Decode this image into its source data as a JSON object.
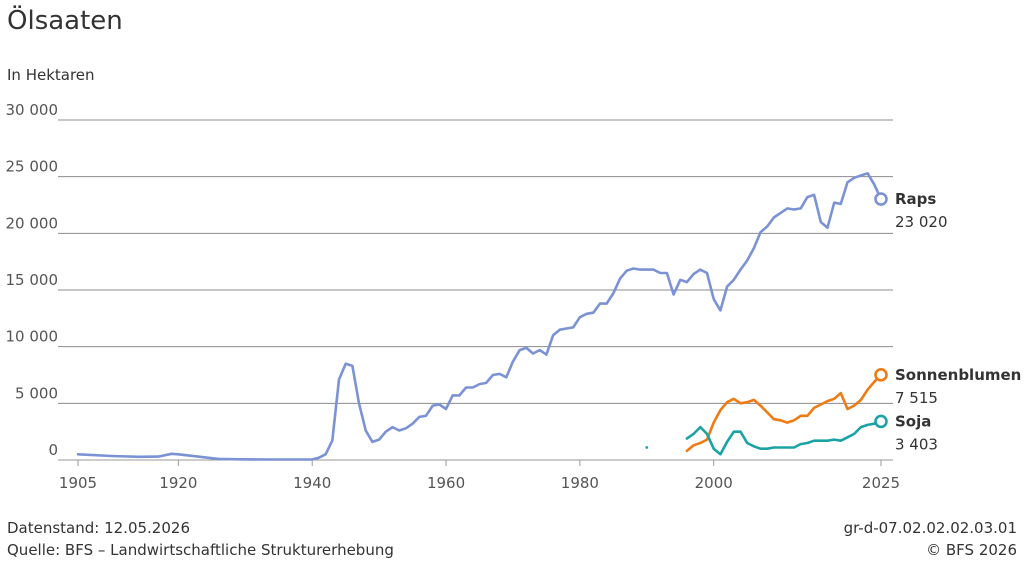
{
  "header": {
    "title": "Ölsaaten",
    "subtitle": "In Hektaren"
  },
  "footer": {
    "data_status": "Datenstand: 12.05.2026",
    "source": "Quelle: BFS – Landwirtschaftliche Strukturerhebung",
    "code": "gr-d-07.02.02.02.03.01",
    "copyright": "© BFS 2026"
  },
  "chart_data": {
    "type": "line",
    "title": "Ölsaaten",
    "subtitle": "In Hektaren",
    "xlim": [
      1905,
      2025
    ],
    "ylim": [
      0,
      30000
    ],
    "x_ticks": [
      1905,
      1920,
      1940,
      1960,
      1980,
      2000,
      2025
    ],
    "x_tick_labels": [
      "1905",
      "1920",
      "1940",
      "1960",
      "1980",
      "2000",
      "2025"
    ],
    "y_ticks": [
      0,
      5000,
      10000,
      15000,
      20000,
      25000,
      30000
    ],
    "y_tick_labels": [
      "0",
      "5 000",
      "10 000",
      "15 000",
      "20 000",
      "25 000",
      "30 000"
    ],
    "grid": true,
    "legend": "end-labels",
    "series": [
      {
        "name": "Raps",
        "color": "#7b92d4",
        "end_label": "23 020",
        "x": [
          1905,
          1910,
          1914,
          1917,
          1919,
          1920,
          1926,
          1929,
          1934,
          1939,
          1940,
          1941,
          1942,
          1943,
          1944,
          1945,
          1946,
          1947,
          1948,
          1949,
          1950,
          1951,
          1952,
          1953,
          1954,
          1955,
          1956,
          1957,
          1958,
          1959,
          1960,
          1961,
          1962,
          1963,
          1964,
          1965,
          1966,
          1967,
          1968,
          1969,
          1970,
          1971,
          1972,
          1973,
          1974,
          1975,
          1976,
          1977,
          1978,
          1979,
          1980,
          1981,
          1982,
          1983,
          1984,
          1985,
          1986,
          1987,
          1988,
          1989,
          1990,
          1991,
          1992,
          1993,
          1994,
          1995,
          1996,
          1997,
          1998,
          1999,
          2000,
          2001,
          2002,
          2003,
          2004,
          2005,
          2006,
          2007,
          2008,
          2009,
          2010,
          2011,
          2012,
          2013,
          2014,
          2015,
          2016,
          2017,
          2018,
          2019,
          2020,
          2021,
          2022,
          2023,
          2024,
          2025
        ],
        "values": [
          500,
          350,
          280,
          300,
          550,
          500,
          100,
          60,
          40,
          40,
          50,
          200,
          500,
          1700,
          7100,
          8500,
          8300,
          5000,
          2600,
          1600,
          1800,
          2500,
          2900,
          2600,
          2800,
          3200,
          3800,
          3900,
          4800,
          4900,
          4500,
          5700,
          5700,
          6400,
          6400,
          6700,
          6800,
          7500,
          7600,
          7300,
          8700,
          9700,
          9900,
          9400,
          9700,
          9300,
          11000,
          11500,
          11600,
          11700,
          12600,
          12900,
          13000,
          13800,
          13800,
          14700,
          16000,
          16700,
          16900,
          16800,
          16800,
          16800,
          16500,
          16500,
          14600,
          15900,
          15700,
          16400,
          16800,
          16500,
          14200,
          13200,
          15300,
          15900,
          16800,
          17600,
          18700,
          20100,
          20600,
          21400,
          21800,
          22200,
          22100,
          22200,
          23200,
          23400,
          21000,
          20500,
          22700,
          22600,
          24500,
          24900,
          25100,
          25300,
          24300,
          23020
        ]
      },
      {
        "name": "Sonnenblumen",
        "color": "#f07a14",
        "end_label": "7 515",
        "x": [
          1996,
          1997,
          1998,
          1999,
          2000,
          2001,
          2002,
          2003,
          2004,
          2005,
          2006,
          2007,
          2008,
          2009,
          2010,
          2011,
          2012,
          2013,
          2014,
          2015,
          2016,
          2017,
          2018,
          2019,
          2020,
          2021,
          2022,
          2023,
          2024,
          2025
        ],
        "values": [
          800,
          1300,
          1500,
          1800,
          3300,
          4400,
          5100,
          5400,
          5000,
          5100,
          5300,
          4800,
          4200,
          3600,
          3500,
          3300,
          3500,
          3900,
          3900,
          4600,
          4900,
          5200,
          5400,
          5900,
          4500,
          4800,
          5300,
          6200,
          6900,
          7515
        ]
      },
      {
        "name": "Soja",
        "color": "#1aa3a6",
        "end_label": "3 403",
        "x": [
          1996,
          1997,
          1998,
          1999,
          2000,
          2001,
          2002,
          2003,
          2004,
          2005,
          2006,
          2007,
          2008,
          2009,
          2010,
          2011,
          2012,
          2013,
          2014,
          2015,
          2016,
          2017,
          2018,
          2019,
          2020,
          2021,
          2022,
          2023,
          2024,
          2025
        ],
        "values": [
          1900,
          2300,
          2900,
          2300,
          1000,
          500,
          1600,
          2500,
          2500,
          1500,
          1200,
          1000,
          1000,
          1100,
          1100,
          1100,
          1100,
          1400,
          1500,
          1700,
          1700,
          1700,
          1800,
          1700,
          2000,
          2300,
          2900,
          3100,
          3200,
          3403
        ],
        "isolated_points": [
          {
            "x": 1990,
            "value": 1100
          }
        ]
      }
    ]
  }
}
